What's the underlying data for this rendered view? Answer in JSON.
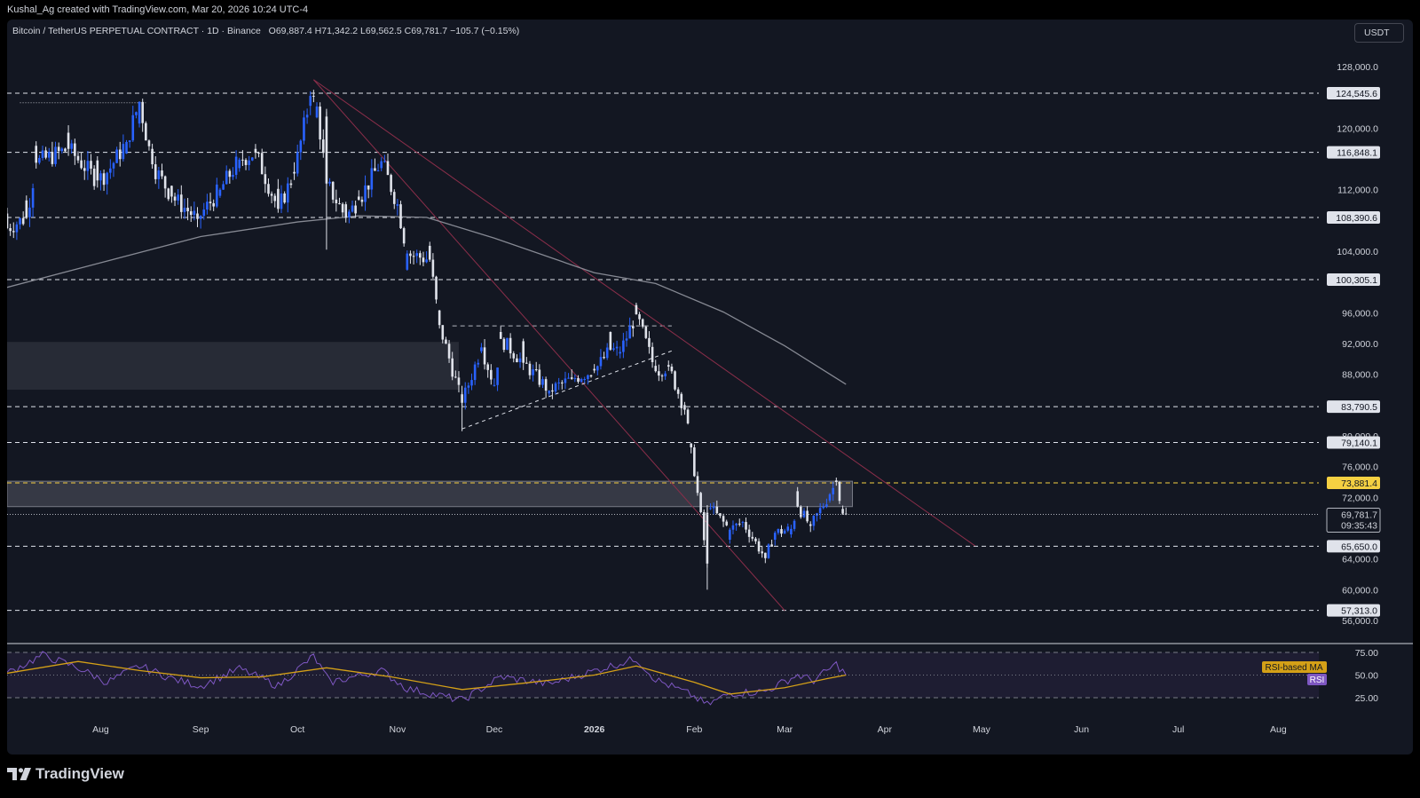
{
  "header": {
    "attribution": "Kushal_Ag created with TradingView.com, Mar 20, 2026 10:24 UTC-4"
  },
  "legend": {
    "symbol": "Bitcoin / TetherUS PERPETUAL CONTRACT · 1D · Binance",
    "open": "O69,887.4",
    "high": "H71,342.2",
    "low": "L69,562.5",
    "close": "C69,781.7",
    "change": "−105.7 (−0.15%)"
  },
  "currency_button": "USDT",
  "footer": {
    "logo_text": "TradingView"
  },
  "colors": {
    "background": "#131722",
    "up_candle": "#2962ff",
    "down_candle": "#e0e3eb",
    "ma_line": "#868993",
    "trendline": "#8b2e4a",
    "rsi_line": "#7e57c2",
    "rsi_ma": "#d4a017",
    "highlight_level": "#f5d042"
  },
  "chart_data": {
    "type": "candlestick",
    "title": "Bitcoin / TetherUS PERPETUAL CONTRACT · 1D · Binance",
    "y_axis": {
      "ticks": [
        128000,
        124000,
        120000,
        116000,
        112000,
        108000,
        104000,
        100000,
        96000,
        92000,
        88000,
        84000,
        80000,
        76000,
        72000,
        68000,
        64000,
        60000,
        56000
      ],
      "tick_labels": [
        "128,000.0",
        "120,000.0",
        "112,000.0",
        "104,000.0",
        "96,000.0",
        "92,000.0",
        "88,000.0",
        "80,000.0",
        "76,000.0",
        "72,000.0",
        "64,000.0",
        "60,000.0",
        "56,000.0"
      ],
      "tick_values": [
        128000,
        120000,
        112000,
        104000,
        96000,
        92000,
        88000,
        80000,
        76000,
        72000,
        64000,
        60000,
        56000
      ],
      "range": [
        54500,
        132000
      ]
    },
    "x_axis": {
      "labels": [
        "Aug",
        "Sep",
        "Oct",
        "Nov",
        "Dec",
        "2026",
        "Feb",
        "Mar",
        "Apr",
        "May",
        "Jun",
        "Jul",
        "Aug"
      ],
      "label_dates": [
        "2025-08-01",
        "2025-09-01",
        "2025-10-01",
        "2025-11-01",
        "2025-12-01",
        "2026-01-01",
        "2026-02-01",
        "2026-03-01",
        "2026-04-01",
        "2026-05-01",
        "2026-06-01",
        "2026-07-01",
        "2026-08-01"
      ],
      "range": [
        "2025-07-03",
        "2026-08-13"
      ]
    },
    "horizontal_levels": [
      {
        "value": 124545.6,
        "label": "124,545.6"
      },
      {
        "value": 116848.1,
        "label": "116,848.1"
      },
      {
        "value": 108390.6,
        "label": "108,390.6"
      },
      {
        "value": 100305.1,
        "label": "100,305.1"
      },
      {
        "value": 83790.5,
        "label": "83,790.5"
      },
      {
        "value": 79140.1,
        "label": "79,140.1"
      },
      {
        "value": 73881.4,
        "label": "73,881.4",
        "highlight": true
      },
      {
        "value": 65650.0,
        "label": "65,650.0"
      },
      {
        "value": 57313.0,
        "label": "57,313.0"
      }
    ],
    "last_price": {
      "value": 69781.7,
      "label": "69,781.7",
      "countdown": "09:35:43"
    },
    "zones": [
      {
        "from_date": "2025-07-03",
        "to_date": "2025-11-20",
        "low": 86000,
        "high": 92200
      },
      {
        "from_date": "2025-07-03",
        "to_date": "2026-03-22",
        "low": 70800,
        "high": 74100
      }
    ],
    "trendlines": [
      {
        "points": [
          [
            "2025-10-06",
            126300
          ],
          [
            "2026-04-29",
            65700
          ]
        ],
        "style": "solid"
      },
      {
        "points": [
          [
            "2025-10-06",
            126300
          ],
          [
            "2026-03-01",
            57300
          ]
        ],
        "style": "solid"
      },
      {
        "points": [
          [
            "2025-11-21",
            80900
          ],
          [
            "2026-01-26",
            91200
          ]
        ],
        "style": "dashed"
      }
    ],
    "short_dashed_lines": [
      {
        "from_date": "2025-07-07",
        "to_date": "2025-08-15",
        "value": 123300,
        "style": "dotted"
      },
      {
        "from_date": "2025-11-18",
        "to_date": "2026-01-25",
        "value": 94300,
        "style": "dashed"
      }
    ],
    "ohlc_anchors": [
      [
        "2025-07-03",
        108900,
        107000
      ],
      [
        "2025-07-09",
        110600,
        108400
      ],
      [
        "2025-07-12",
        117700,
        115500
      ],
      [
        "2025-07-22",
        119400,
        117300
      ],
      [
        "2025-07-31",
        115800,
        113200
      ],
      [
        "2025-08-03",
        112700,
        114200
      ],
      [
        "2025-08-09",
        116700,
        118200
      ],
      [
        "2025-08-13",
        120600,
        123400
      ],
      [
        "2025-08-17",
        117300,
        115300
      ],
      [
        "2025-08-23",
        112500,
        111100
      ],
      [
        "2025-08-31",
        108900,
        108200
      ],
      [
        "2025-09-07",
        111200,
        112000
      ],
      [
        "2025-09-13",
        114800,
        115900
      ],
      [
        "2025-09-18",
        117300,
        116800
      ],
      [
        "2025-09-25",
        112100,
        109500
      ],
      [
        "2025-09-30",
        114300,
        114100
      ],
      [
        "2025-10-05",
        122900,
        124200
      ],
      [
        "2025-10-07",
        121400,
        122800
      ],
      [
        "2025-10-10",
        121500,
        112800
      ],
      [
        "2025-10-16",
        110100,
        108400
      ],
      [
        "2025-10-20",
        111100,
        110700
      ],
      [
        "2025-10-27",
        114800,
        115700
      ],
      [
        "2025-11-01",
        109900,
        110100
      ],
      [
        "2025-11-04",
        101600,
        103700
      ],
      [
        "2025-11-11",
        104700,
        102900
      ],
      [
        "2025-11-14",
        96300,
        94400
      ],
      [
        "2025-11-21",
        85400,
        84300
      ],
      [
        "2025-11-27",
        91000,
        91500
      ],
      [
        "2025-12-01",
        86500,
        86600
      ],
      [
        "2025-12-03",
        93500,
        92600
      ],
      [
        "2025-12-10",
        92300,
        89500
      ],
      [
        "2025-12-18",
        85500,
        85900
      ],
      [
        "2025-12-25",
        87600,
        87400
      ],
      [
        "2026-01-01",
        88700,
        88500
      ],
      [
        "2026-01-06",
        93500,
        91200
      ],
      [
        "2026-01-09",
        90700,
        90900
      ],
      [
        "2026-01-14",
        97000,
        95800
      ],
      [
        "2026-01-20",
        89100,
        88400
      ],
      [
        "2026-01-24",
        89200,
        89000
      ],
      [
        "2026-01-29",
        84000,
        83400
      ],
      [
        "2026-01-31",
        79000,
        78500
      ],
      [
        "2026-02-05",
        70000,
        63400
      ],
      [
        "2026-02-06",
        70600,
        70600
      ],
      [
        "2026-02-12",
        66500,
        67800
      ],
      [
        "2026-02-16",
        68800,
        68800
      ],
      [
        "2026-02-23",
        64800,
        64100
      ],
      [
        "2026-02-26",
        66500,
        67400
      ],
      [
        "2026-03-03",
        67200,
        67900
      ],
      [
        "2026-03-05",
        72800,
        70800
      ],
      [
        "2026-03-09",
        68500,
        68300
      ],
      [
        "2026-03-15",
        71600,
        72400
      ],
      [
        "2026-03-17",
        74200,
        74000
      ],
      [
        "2026-03-19",
        70500,
        69887.4
      ],
      [
        "2026-03-20",
        69887.4,
        69781.7
      ]
    ],
    "moving_average": {
      "name": "",
      "points": [
        [
          "2025-07-03",
          99300
        ],
        [
          "2025-08-01",
          102500
        ],
        [
          "2025-09-01",
          105900
        ],
        [
          "2025-10-01",
          107800
        ],
        [
          "2025-10-20",
          108600
        ],
        [
          "2025-11-10",
          108400
        ],
        [
          "2025-12-01",
          105700
        ],
        [
          "2026-01-01",
          101200
        ],
        [
          "2026-01-20",
          99800
        ],
        [
          "2026-02-10",
          96100
        ],
        [
          "2026-03-01",
          91700
        ],
        [
          "2026-03-20",
          86700
        ]
      ]
    },
    "rsi": {
      "series": [
        {
          "name": "RSI",
          "points": [
            [
              "2025-07-03",
              52
            ],
            [
              "2025-07-14",
              72
            ],
            [
              "2025-07-25",
              58
            ],
            [
              "2025-08-03",
              42
            ],
            [
              "2025-08-13",
              60
            ],
            [
              "2025-08-24",
              45
            ],
            [
              "2025-09-01",
              38
            ],
            [
              "2025-09-13",
              57
            ],
            [
              "2025-09-25",
              38
            ],
            [
              "2025-10-06",
              71
            ],
            [
              "2025-10-11",
              42
            ],
            [
              "2025-10-27",
              55
            ],
            [
              "2025-11-04",
              35
            ],
            [
              "2025-11-21",
              22
            ],
            [
              "2025-12-03",
              48
            ],
            [
              "2025-12-18",
              40
            ],
            [
              "2026-01-06",
              60
            ],
            [
              "2026-01-14",
              68
            ],
            [
              "2026-01-20",
              45
            ],
            [
              "2026-01-31",
              28
            ],
            [
              "2026-02-05",
              17
            ],
            [
              "2026-02-12",
              30
            ],
            [
              "2026-02-23",
              32
            ],
            [
              "2026-03-05",
              50
            ],
            [
              "2026-03-10",
              44
            ],
            [
              "2026-03-17",
              62
            ],
            [
              "2026-03-20",
              50
            ]
          ]
        },
        {
          "name": "RSI-based MA",
          "points": [
            [
              "2025-07-03",
              52
            ],
            [
              "2025-07-25",
              65
            ],
            [
              "2025-08-13",
              55
            ],
            [
              "2025-09-01",
              47
            ],
            [
              "2025-09-20",
              48
            ],
            [
              "2025-10-10",
              58
            ],
            [
              "2025-10-30",
              48
            ],
            [
              "2025-11-21",
              34
            ],
            [
              "2025-12-10",
              41
            ],
            [
              "2026-01-01",
              50
            ],
            [
              "2026-01-14",
              60
            ],
            [
              "2026-02-01",
              42
            ],
            [
              "2026-02-12",
              29
            ],
            [
              "2026-03-01",
              36
            ],
            [
              "2026-03-14",
              46
            ],
            [
              "2026-03-20",
              50
            ]
          ]
        }
      ],
      "levels": [
        75,
        50,
        25
      ],
      "tick_labels": [
        "75.00",
        "50.00",
        "25.00"
      ],
      "legend": [
        "RSI-based MA",
        "RSI"
      ]
    }
  }
}
